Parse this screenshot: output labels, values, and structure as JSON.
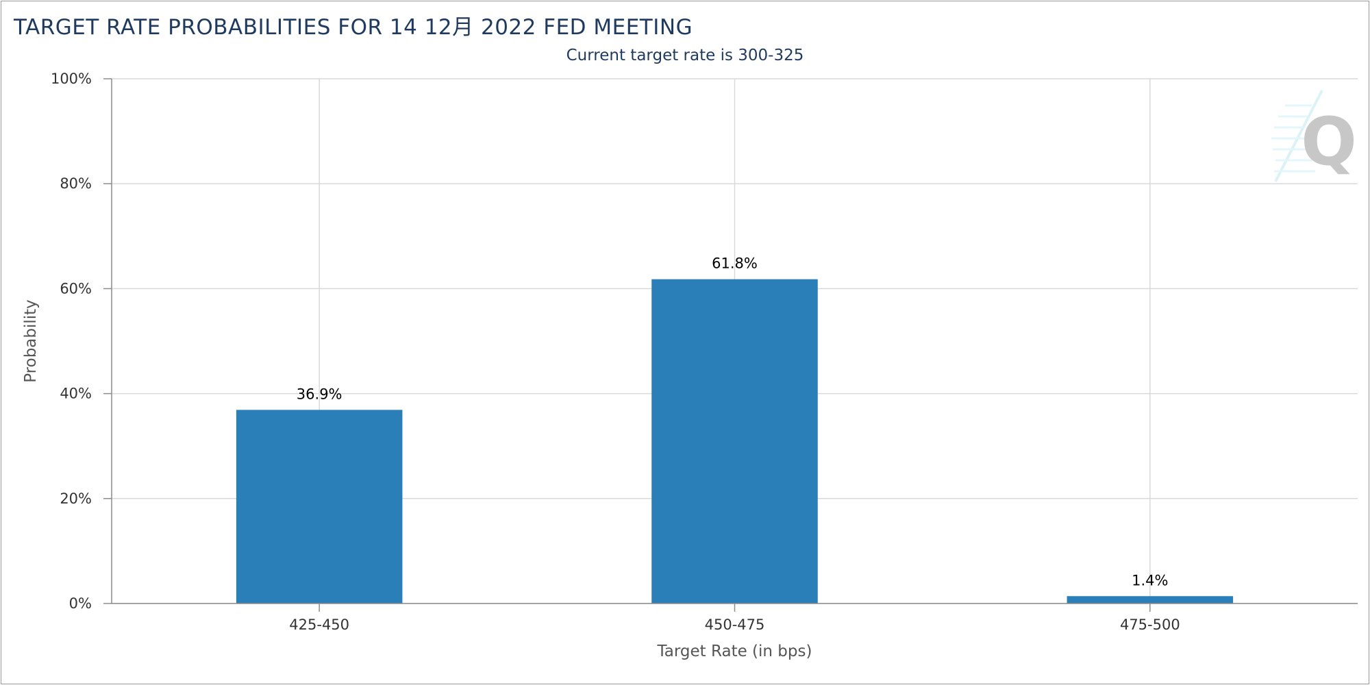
{
  "chart_data": {
    "type": "bar",
    "title": "TARGET RATE PROBABILITIES FOR 14 12月 2022 FED MEETING",
    "subtitle": "Current target rate is 300-325",
    "xlabel": "Target Rate (in bps)",
    "ylabel": "Probability",
    "categories": [
      "425-450",
      "450-475",
      "475-500"
    ],
    "values": [
      36.9,
      61.8,
      1.4
    ],
    "data_labels": [
      "36.9%",
      "61.8%",
      "1.4%"
    ],
    "ylim": [
      0,
      100
    ],
    "yticks": [
      "0%",
      "20%",
      "40%",
      "60%",
      "80%",
      "100%"
    ],
    "grid": true,
    "legend": "none",
    "bar_color": "#2a7fb8",
    "watermark_text": "Q"
  }
}
